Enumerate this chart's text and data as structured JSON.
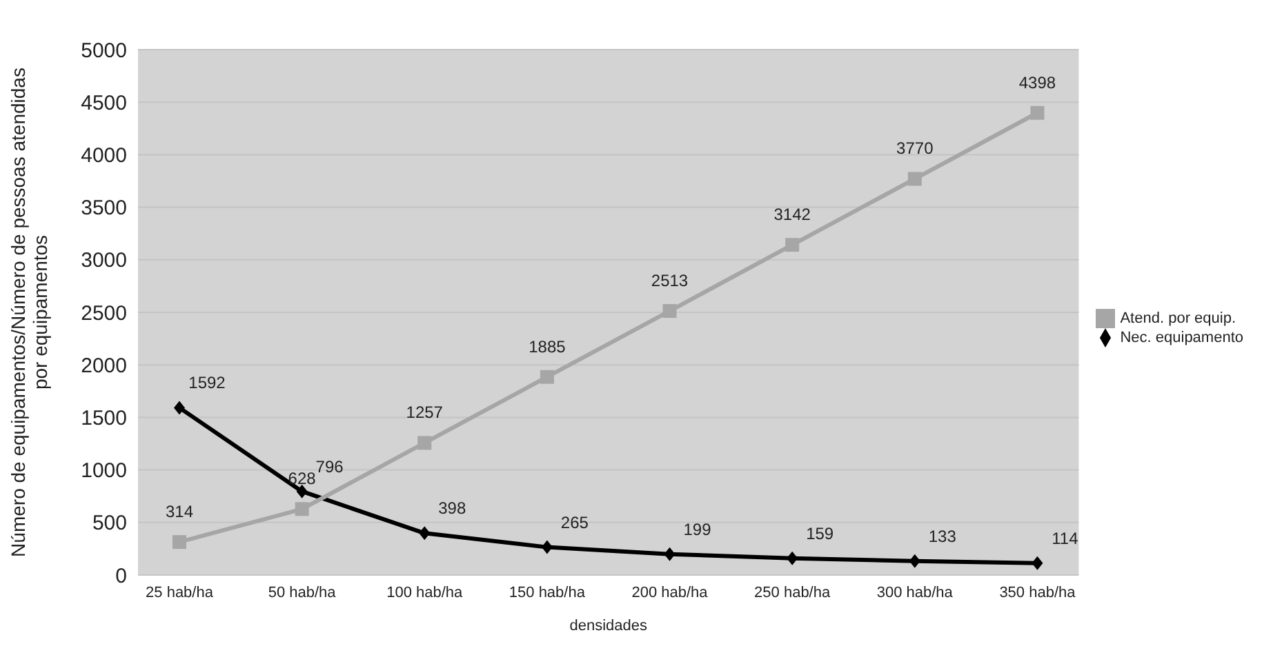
{
  "chart_data": {
    "type": "line",
    "xlabel": "densidades",
    "ylabel": "Número de equipamentos/Número de pessoas atendidas por equipamentos",
    "categories": [
      "25 hab/ha",
      "50 hab/ha",
      "100 hab/ha",
      "150 hab/ha",
      "200 hab/ha",
      "250 hab/ha",
      "300 hab/ha",
      "350 hab/ha"
    ],
    "series": [
      {
        "name": "Nec. equipamento",
        "color": "#000000",
        "marker": "diamond",
        "values": [
          1592,
          796,
          398,
          265,
          199,
          159,
          133,
          114
        ]
      },
      {
        "name": "Atend. por equip.",
        "color": "#a6a6a6",
        "marker": "square",
        "values": [
          314,
          628,
          1257,
          1885,
          2513,
          3142,
          3770,
          4398
        ]
      }
    ],
    "ylim": [
      0,
      5000
    ],
    "yticks": [
      0,
      500,
      1000,
      1500,
      2000,
      2500,
      3000,
      3500,
      4000,
      4500,
      5000
    ],
    "grid": "y",
    "legend": "right",
    "data_labels": true
  }
}
